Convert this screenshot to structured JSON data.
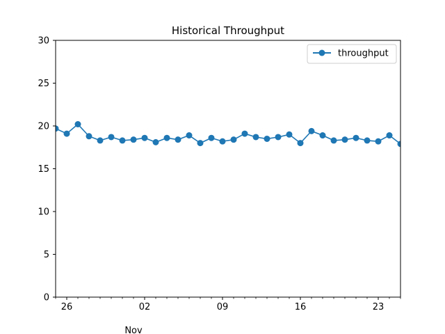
{
  "chart_data": {
    "type": "line",
    "title": "Historical Throughput",
    "xlabel": "",
    "ylabel": "",
    "x_axis": {
      "kind": "date",
      "range": [
        "2019-10-25",
        "2019-11-25"
      ],
      "ticks": [
        {
          "date": "2019-10-26",
          "label": "26"
        },
        {
          "date": "2019-11-02",
          "label": "02"
        },
        {
          "date": "2019-11-09",
          "label": "09"
        },
        {
          "date": "2019-11-16",
          "label": "16"
        },
        {
          "date": "2019-11-23",
          "label": "23"
        }
      ],
      "month_label": {
        "date": "2019-11-01",
        "label": "Nov"
      }
    },
    "y_axis": {
      "range": [
        0,
        30
      ],
      "ticks": [
        0,
        5,
        10,
        15,
        20,
        25,
        30
      ]
    },
    "grid": false,
    "legend_position": "top-right",
    "series": [
      {
        "name": "throughput",
        "color": "#1f77b4",
        "marker": "circle",
        "x": [
          "2019-10-25",
          "2019-10-26",
          "2019-10-27",
          "2019-10-28",
          "2019-10-29",
          "2019-10-30",
          "2019-10-31",
          "2019-11-01",
          "2019-11-02",
          "2019-11-03",
          "2019-11-04",
          "2019-11-05",
          "2019-11-06",
          "2019-11-07",
          "2019-11-08",
          "2019-11-09",
          "2019-11-10",
          "2019-11-11",
          "2019-11-12",
          "2019-11-13",
          "2019-11-14",
          "2019-11-15",
          "2019-11-16",
          "2019-11-17",
          "2019-11-18",
          "2019-11-19",
          "2019-11-20",
          "2019-11-21",
          "2019-11-22",
          "2019-11-23",
          "2019-11-24",
          "2019-11-25"
        ],
        "values": [
          19.7,
          19.1,
          20.2,
          18.8,
          18.3,
          18.7,
          18.3,
          18.4,
          18.6,
          18.1,
          18.6,
          18.4,
          18.9,
          18.0,
          18.6,
          18.2,
          18.4,
          19.1,
          18.7,
          18.5,
          18.7,
          19.0,
          18.0,
          19.4,
          18.9,
          18.3,
          18.4,
          18.6,
          18.3,
          18.2,
          18.9,
          17.9
        ]
      }
    ]
  }
}
